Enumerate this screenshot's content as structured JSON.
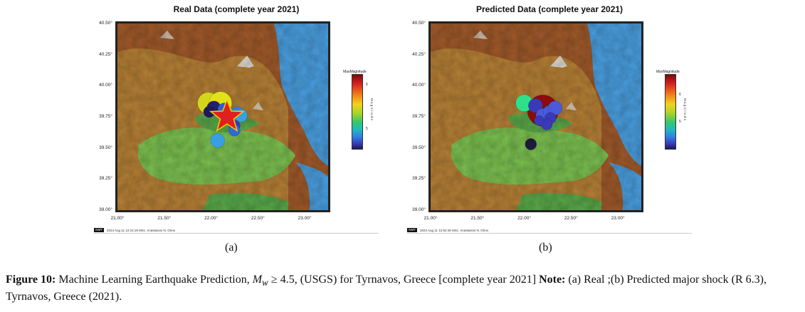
{
  "panels": [
    {
      "title": "Real Data (complete year 2021)",
      "sublabel": "(a)",
      "colorbar_title": "MaxMagnitude",
      "colorbar_unit": "M a g n i t u d e",
      "colorbar_ticks": [
        "6",
        "5"
      ],
      "footer_logo": "GMT",
      "footer_text": "2024 Aug 11 12:31:19   MSc. Anastasios N. Ghos",
      "star": true,
      "events": [
        {
          "lon": 21.97,
          "lat": 39.86,
          "mag": 5.9,
          "r": 15,
          "color": "#d4d61a"
        },
        {
          "lon": 22.1,
          "lat": 39.86,
          "mag": 5.9,
          "r": 16,
          "color": "#e2e21a"
        },
        {
          "lon": 22.03,
          "lat": 39.82,
          "mag": 5.0,
          "r": 10,
          "color": "#25206a"
        },
        {
          "lon": 21.98,
          "lat": 39.79,
          "mag": 4.5,
          "r": 8,
          "color": "#1e1a5a"
        },
        {
          "lon": 22.14,
          "lat": 39.81,
          "mag": 5.2,
          "r": 9,
          "color": "#2f60d0"
        },
        {
          "lon": 22.2,
          "lat": 39.75,
          "mag": 5.6,
          "r": 12,
          "color": "#34c86a"
        },
        {
          "lon": 22.28,
          "lat": 39.78,
          "mag": 5.0,
          "r": 9,
          "color": "#2f7fe0"
        },
        {
          "lon": 22.32,
          "lat": 39.76,
          "mag": 5.0,
          "r": 9,
          "color": "#38a0e0"
        },
        {
          "lon": 22.25,
          "lat": 39.68,
          "mag": 4.9,
          "r": 8,
          "color": "#3a3ab8"
        },
        {
          "lon": 22.25,
          "lat": 39.64,
          "mag": 4.9,
          "r": 8,
          "color": "#3068d8"
        },
        {
          "lon": 22.07,
          "lat": 39.56,
          "mag": 5.0,
          "r": 10,
          "color": "#38a0e0"
        }
      ]
    },
    {
      "title": "Predicted Data (complete year 2021)",
      "sublabel": "(b)",
      "colorbar_title": "MaxMagnitude",
      "colorbar_unit": "M a g n i t u d e",
      "colorbar_ticks": [
        "6",
        "5"
      ],
      "footer_logo": "GMT",
      "footer_text": "2024 Aug 11 12:52:46   MSc. Anastasios N. Ghos",
      "star": false,
      "events": [
        {
          "lon": 22.2,
          "lat": 39.8,
          "mag": 6.3,
          "r": 22,
          "color": "#8a0c0c"
        },
        {
          "lon": 22.0,
          "lat": 39.86,
          "mag": 5.4,
          "r": 12,
          "color": "#2ee08a"
        },
        {
          "lon": 22.12,
          "lat": 39.84,
          "mag": 5.0,
          "r": 10,
          "color": "#3a3ab8"
        },
        {
          "lon": 22.2,
          "lat": 39.76,
          "mag": 5.0,
          "r": 10,
          "color": "#4a5ad8"
        },
        {
          "lon": 22.27,
          "lat": 39.79,
          "mag": 5.0,
          "r": 9,
          "color": "#4060e0"
        },
        {
          "lon": 22.33,
          "lat": 39.82,
          "mag": 5.0,
          "r": 10,
          "color": "#4a5ad8"
        },
        {
          "lon": 22.28,
          "lat": 39.74,
          "mag": 4.9,
          "r": 8,
          "color": "#3a3ab8"
        },
        {
          "lon": 22.24,
          "lat": 39.69,
          "mag": 4.8,
          "r": 8,
          "color": "#3a3ab8"
        },
        {
          "lon": 22.16,
          "lat": 39.72,
          "mag": 4.8,
          "r": 7,
          "color": "#3a3ab8"
        },
        {
          "lon": 22.07,
          "lat": 39.53,
          "mag": 4.6,
          "r": 8,
          "color": "#1e1a3a"
        }
      ]
    }
  ],
  "map_extent": {
    "lon": [
      21.0,
      23.25
    ],
    "lat": [
      39.0,
      40.5
    ]
  },
  "x_ticks": [
    "21.00°",
    "21.50°",
    "22.00°",
    "22.50°",
    "23.00°"
  ],
  "x_tick_values": [
    21.0,
    21.5,
    22.0,
    22.5,
    23.0
  ],
  "y_ticks": [
    "40.50°",
    "40.25°",
    "40.00°",
    "39.75°",
    "39.50°",
    "39.25°",
    "39.00°"
  ],
  "y_tick_values": [
    40.5,
    40.25,
    40.0,
    39.75,
    39.5,
    39.25,
    39.0
  ],
  "colors": {
    "sea": "#4a9fe0",
    "lowland": "#5aa84a",
    "plain": "#7cc050",
    "hills": "#c8a040",
    "mountain": "#a05a2a",
    "peak": "#e8e8e8",
    "star": "#e02020",
    "star_edge": "#f0d000"
  },
  "caption": {
    "fig": "Figure 10:",
    "text1": " Machine Learning Earthquake Prediction, ",
    "mw": "M",
    "mw_sub": "w",
    "text2": " ≥ 4.5, (USGS) for Tyrnavos, Greece [complete year 2021] ",
    "note": "Note:",
    "text3": " (a) Real ;(b) Predicted major shock (R 6.3), Tyrnavos, Greece (2021)."
  }
}
